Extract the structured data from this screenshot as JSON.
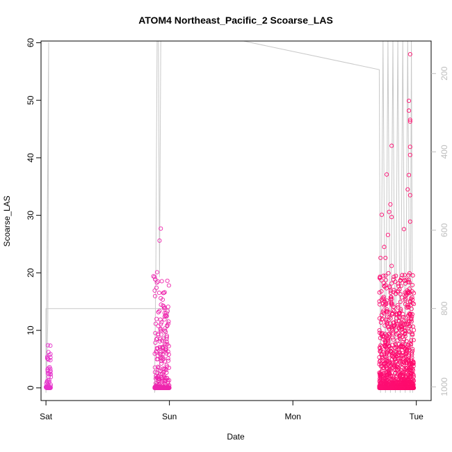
{
  "chart_data": {
    "type": "scatter",
    "title": "ATOM4 Northeast_Pacific_2 Scoarse_LAS",
    "xlabel": "Date",
    "ylabel": "Scoarse_LAS",
    "x_ticks": [
      "Sat",
      "Sun",
      "Mon",
      "Tue"
    ],
    "x_range_days": [
      -0.04,
      3.12
    ],
    "y_ticks": [
      0,
      10,
      20,
      30,
      40,
      50,
      60
    ],
    "ylim": [
      -2.2,
      60.3
    ],
    "y2_ticks": [
      200,
      400,
      600,
      800,
      1000
    ],
    "y2lim": [
      1035,
      117
    ],
    "y2_reversed": true,
    "grid": false,
    "colors": {
      "points_start": "#e633cc",
      "points_end": "#ff0a6a",
      "line": "#c8c8c8",
      "axes": "#000000",
      "right_axis": "#bdbdbd"
    },
    "series": [
      {
        "kind": "points",
        "clusters": [
          {
            "x_from": 0.0,
            "x_to": 0.04,
            "count": 70,
            "y_max": 7.5,
            "outliers": [
              [
                0.015,
                7.4
              ],
              [
                0.01,
                5.4
              ],
              [
                0.02,
                4.9
              ],
              [
                0.03,
                3.6
              ]
            ]
          },
          {
            "x_from": 0.88,
            "x_to": 1.0,
            "count": 320,
            "y_max": 20,
            "outliers": [
              [
                0.93,
                27.7
              ],
              [
                0.92,
                25.6
              ],
              [
                0.88,
                19.3
              ],
              [
                0.9,
                20.1
              ],
              [
                0.95,
                16.5
              ],
              [
                0.93,
                15.6
              ],
              [
                0.87,
                19.4
              ]
            ]
          },
          {
            "x_from": 2.7,
            "x_to": 2.98,
            "count": 1400,
            "y_max": 20,
            "outliers": [
              [
                2.95,
                58.0
              ],
              [
                2.94,
                49.9
              ],
              [
                2.94,
                48.2
              ],
              [
                2.95,
                46.6
              ],
              [
                2.95,
                46.3
              ],
              [
                2.8,
                42.1
              ],
              [
                2.95,
                41.9
              ],
              [
                2.95,
                40.5
              ],
              [
                2.94,
                37.0
              ],
              [
                2.76,
                37.1
              ],
              [
                2.93,
                34.5
              ],
              [
                2.95,
                33.5
              ],
              [
                2.79,
                31.9
              ],
              [
                2.78,
                30.6
              ],
              [
                2.72,
                30.1
              ],
              [
                2.8,
                29.7
              ],
              [
                2.95,
                28.9
              ],
              [
                2.9,
                27.6
              ],
              [
                2.77,
                26.6
              ],
              [
                2.74,
                24.5
              ],
              [
                2.75,
                22.6
              ],
              [
                2.8,
                21.2
              ],
              [
                2.71,
                22.6
              ]
            ]
          }
        ]
      },
      {
        "kind": "line",
        "axis": "y2",
        "points": [
          [
            0.0,
            1015
          ],
          [
            0.01,
            900
          ],
          [
            0.015,
            830
          ],
          [
            0.02,
            330
          ],
          [
            0.022,
            120
          ],
          [
            0.0,
            1015
          ],
          [
            0.0,
            800
          ],
          [
            1.0,
            800
          ],
          [
            0.88,
            1015
          ],
          [
            0.89,
            700
          ],
          [
            0.9,
            117
          ],
          [
            0.91,
            117
          ],
          [
            0.92,
            720
          ],
          [
            0.93,
            117
          ],
          [
            1.6,
            117
          ],
          [
            2.7,
            190
          ],
          [
            2.71,
            1015
          ],
          [
            2.73,
            117
          ],
          [
            2.75,
            1015
          ],
          [
            2.77,
            117
          ],
          [
            2.79,
            1015
          ],
          [
            2.81,
            117
          ],
          [
            2.83,
            1015
          ],
          [
            2.85,
            117
          ],
          [
            2.87,
            1015
          ],
          [
            2.89,
            117
          ],
          [
            2.91,
            1015
          ],
          [
            2.93,
            117
          ],
          [
            2.95,
            1015
          ],
          [
            2.96,
            117
          ],
          [
            2.97,
            1015
          ]
        ]
      }
    ]
  }
}
